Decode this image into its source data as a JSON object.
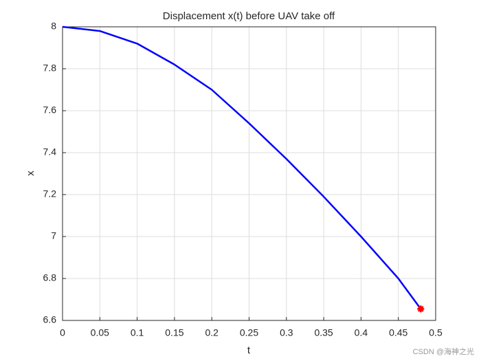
{
  "chart_data": {
    "type": "line",
    "title": "Displacement x(t) before UAV take off",
    "x_label": "t",
    "y_label": "x",
    "x": [
      0,
      0.05,
      0.1,
      0.15,
      0.2,
      0.25,
      0.3,
      0.35,
      0.4,
      0.45,
      0.48
    ],
    "series": [
      {
        "color": "#0000ff",
        "values": [
          8,
          7.98,
          7.92,
          7.82,
          7.7,
          7.54,
          7.37,
          7.19,
          7.0,
          6.8,
          6.655
        ]
      },
      {
        "color": "#ff0000",
        "marker": "*",
        "x": [
          0.48
        ],
        "values": [
          6.655
        ]
      }
    ],
    "xlim": [
      0,
      0.5
    ],
    "xticks": [
      0,
      0.05,
      0.1,
      0.15,
      0.2,
      0.25,
      0.3,
      0.35,
      0.4,
      0.45,
      0.5
    ],
    "ylim": [
      6.6,
      8
    ],
    "yticks": [
      6.6,
      6.8,
      7,
      7.2,
      7.4,
      7.6,
      7.8,
      8
    ],
    "grid": true,
    "watermark": "CSDN @海神之光"
  }
}
